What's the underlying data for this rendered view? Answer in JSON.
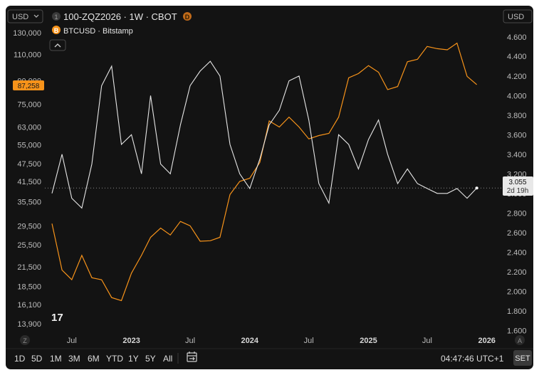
{
  "header": {
    "left_currency": "USD",
    "right_currency": "USD",
    "badge_1": "1",
    "symbol_title": "100-ZQZ2026 · 1W · CBOT",
    "badge_d": "D",
    "badge_b": "B",
    "overlay_title": "BTCUSD · Bitstamp",
    "collapse_icon": "chevron-up-icon"
  },
  "price_labels": {
    "btc_last": "87,258",
    "main_last": "3.055",
    "countdown": "2d 19h"
  },
  "bottom": {
    "ranges": [
      "1D",
      "5D",
      "1M",
      "3M",
      "6M",
      "YTD",
      "1Y",
      "5Y",
      "All"
    ],
    "calendar_icon": "calendar-range-icon",
    "clock": "04:47:46 UTC+1",
    "set_label": "SET",
    "z_label": "Z",
    "a_label": "A",
    "logo_text": "17"
  },
  "colors": {
    "background": "#131313",
    "main_series": "#e6e6e6",
    "btc_series": "#f7931a",
    "btc_badge": "#f7931a",
    "d_badge": "#c06a1a"
  },
  "chart_data": {
    "type": "line",
    "x_ticks": [
      "Jul",
      "2023",
      "Jul",
      "2024",
      "Jul",
      "2025",
      "Jul",
      "2026"
    ],
    "left_axis": {
      "label": "USD",
      "scale": "log",
      "ticks": [
        "130,000",
        "110,000",
        "90,000",
        "75,000",
        "63,000",
        "55,000",
        "47,500",
        "41,500",
        "35,500",
        "29,500",
        "25,500",
        "21,500",
        "18,500",
        "16,100",
        "13,900"
      ]
    },
    "right_axis": {
      "label": "USD",
      "scale": "linear",
      "ylim": [
        1.5,
        4.7
      ],
      "ticks": [
        "4.600",
        "4.400",
        "4.200",
        "4.000",
        "3.800",
        "3.600",
        "3.400",
        "3.200",
        "3.000",
        "2.800",
        "2.600",
        "2.400",
        "2.200",
        "2.000",
        "1.800",
        "1.600"
      ]
    },
    "last_price_line": 3.055,
    "series": [
      {
        "name": "BTCUSD · Bitstamp",
        "axis": "left",
        "color": "#f7931a",
        "x": [
          "2022-05",
          "2022-06",
          "2022-07",
          "2022-08",
          "2022-09",
          "2022-10",
          "2022-11",
          "2022-12",
          "2023-01",
          "2023-02",
          "2023-03",
          "2023-04",
          "2023-05",
          "2023-06",
          "2023-07",
          "2023-08",
          "2023-09",
          "2023-10",
          "2023-11",
          "2023-12",
          "2024-01",
          "2024-02",
          "2024-03",
          "2024-04",
          "2024-05",
          "2024-06",
          "2024-07",
          "2024-08",
          "2024-09",
          "2024-10",
          "2024-11",
          "2024-12",
          "2025-01",
          "2025-02",
          "2025-03",
          "2025-04",
          "2025-05",
          "2025-06",
          "2025-07",
          "2025-08",
          "2025-09",
          "2025-10",
          "2025-11",
          "2025-12"
        ],
        "values": [
          30000,
          21000,
          19500,
          23500,
          19800,
          19500,
          17000,
          16600,
          20500,
          23500,
          27000,
          29000,
          27500,
          30500,
          29500,
          26200,
          26300,
          27000,
          37500,
          41500,
          42500,
          48000,
          66000,
          63000,
          68000,
          63000,
          57500,
          59000,
          60000,
          68000,
          92000,
          95000,
          101000,
          96000,
          84000,
          86000,
          104000,
          106000,
          117000,
          115000,
          114000,
          120000,
          93000,
          87258
        ]
      },
      {
        "name": "100-ZQZ2026 · 1W · CBOT",
        "axis": "right",
        "color": "#e6e6e6",
        "x": [
          "2022-05",
          "2022-06",
          "2022-07",
          "2022-08",
          "2022-09",
          "2022-10",
          "2022-11",
          "2022-12",
          "2023-01",
          "2023-02",
          "2023-03",
          "2023-04",
          "2023-05",
          "2023-06",
          "2023-07",
          "2023-08",
          "2023-09",
          "2023-10",
          "2023-11",
          "2023-12",
          "2024-01",
          "2024-02",
          "2024-03",
          "2024-04",
          "2024-05",
          "2024-06",
          "2024-07",
          "2024-08",
          "2024-09",
          "2024-10",
          "2024-11",
          "2024-12",
          "2025-01",
          "2025-02",
          "2025-03",
          "2025-04",
          "2025-05",
          "2025-06",
          "2025-07",
          "2025-08",
          "2025-09",
          "2025-10",
          "2025-11",
          "2025-12"
        ],
        "values": [
          3.0,
          3.4,
          2.95,
          2.85,
          3.3,
          4.1,
          4.3,
          3.5,
          3.6,
          3.2,
          4.0,
          3.3,
          3.2,
          3.7,
          4.1,
          4.25,
          4.35,
          4.2,
          3.5,
          3.2,
          3.05,
          3.35,
          3.7,
          3.85,
          4.15,
          4.2,
          3.75,
          3.1,
          2.9,
          3.6,
          3.5,
          3.25,
          3.55,
          3.75,
          3.4,
          3.1,
          3.25,
          3.1,
          3.05,
          3.0,
          3.0,
          3.05,
          2.95,
          3.055
        ]
      }
    ]
  }
}
